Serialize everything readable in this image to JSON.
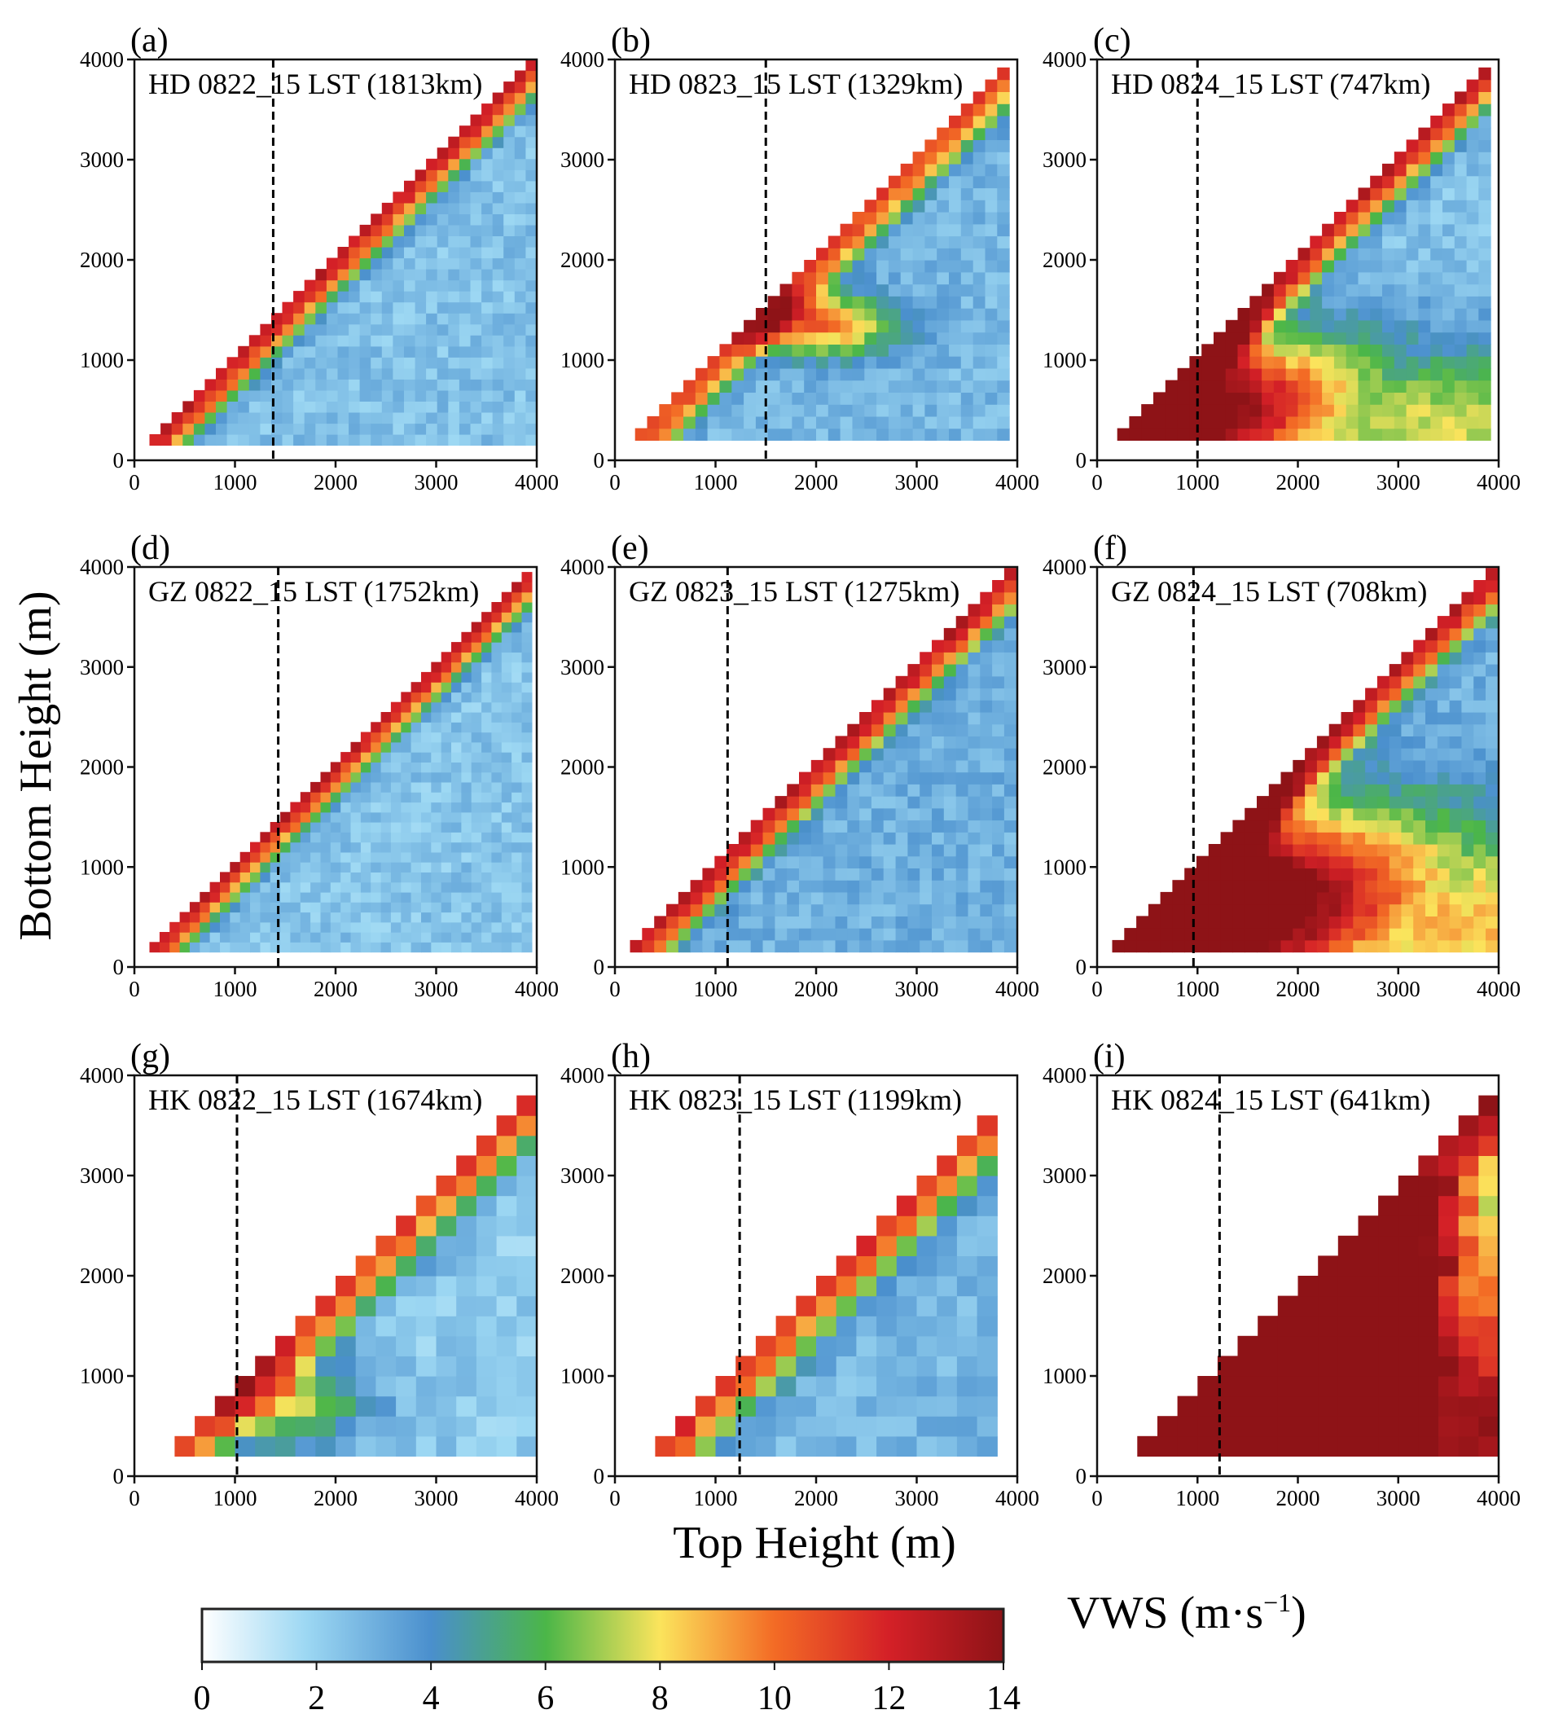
{
  "chart_data": {
    "type": "heatmap",
    "figure_title": "",
    "xlabel": "Top Height (m)",
    "ylabel": "Bottom Height (m)",
    "xlim": [
      0,
      4000
    ],
    "ylim": [
      0,
      4000
    ],
    "xticks": [
      "0",
      "1000",
      "2000",
      "3000",
      "4000"
    ],
    "yticks": [
      "0",
      "1000",
      "2000",
      "3000",
      "4000"
    ],
    "grid": false,
    "colorbar": {
      "label": "VWS (m·s⁻¹)",
      "label_main": "VWS (m·s",
      "label_sup": "−1",
      "label_close": ")",
      "range": [
        0,
        14
      ],
      "ticks": [
        "0",
        "2",
        "4",
        "6",
        "8",
        "10",
        "12",
        "14"
      ],
      "placement": "bottom",
      "colormap": [
        {
          "v": 0,
          "c": "#ffffff"
        },
        {
          "v": 1.8,
          "c": "#9dd8f3"
        },
        {
          "v": 4,
          "c": "#4a8fcd"
        },
        {
          "v": 6,
          "c": "#4bb648"
        },
        {
          "v": 8,
          "c": "#fbe45c"
        },
        {
          "v": 10,
          "c": "#f36b25"
        },
        {
          "v": 12,
          "c": "#d42027"
        },
        {
          "v": 14,
          "c": "#8e1317"
        }
      ]
    },
    "panels": [
      {
        "letter": "(a)",
        "title": "HD 0822_15 LST (1813km)",
        "site": "HD",
        "date": "0822",
        "distance_km": 1813,
        "dashed_line_x": 1380,
        "bin_m": 110,
        "start_m": 150,
        "top_max_m": 3900,
        "near_diag_max": 14,
        "plume_strength": 0,
        "plume_extent_m": 0,
        "background": 2.5,
        "pattern": "diagonal-band"
      },
      {
        "letter": "(b)",
        "title": "HD 0823_15 LST (1329km)",
        "site": "HD",
        "date": "0823",
        "distance_km": 1329,
        "dashed_line_x": 1500,
        "bin_m": 120,
        "start_m": 200,
        "top_max_m": 3900,
        "near_diag_max": 12,
        "plume_strength": 7.5,
        "plume_center_bottom_m": 1300,
        "plume_extent_m": 900,
        "background": 2.8,
        "pattern": "mid-level-jet"
      },
      {
        "letter": "(c)",
        "title": "HD 0824_15 LST (747km)",
        "site": "HD",
        "date": "0824",
        "distance_km": 747,
        "dashed_line_x": 1000,
        "bin_m": 120,
        "start_m": 200,
        "top_max_m": 3900,
        "near_diag_max": 14,
        "plume_strength": 14,
        "plume_center_bottom_m": 300,
        "plume_extent_m": 2200,
        "background": 2.5,
        "pattern": "low-level-strong"
      },
      {
        "letter": "(d)",
        "title": "GZ 0822_15 LST (1752km)",
        "site": "GZ",
        "date": "0822",
        "distance_km": 1752,
        "dashed_line_x": 1430,
        "bin_m": 100,
        "start_m": 150,
        "top_max_m": 3900,
        "near_diag_max": 14,
        "plume_strength": 0,
        "plume_extent_m": 0,
        "background": 2.4,
        "pattern": "diagonal-band"
      },
      {
        "letter": "(e)",
        "title": "GZ 0823_15 LST (1275km)",
        "site": "GZ",
        "date": "0823",
        "distance_km": 1275,
        "dashed_line_x": 1120,
        "bin_m": 120,
        "start_m": 150,
        "top_max_m": 3900,
        "near_diag_max": 14,
        "plume_strength": 0,
        "plume_extent_m": 0,
        "background": 3.0,
        "pattern": "diagonal-band"
      },
      {
        "letter": "(f)",
        "title": "GZ 0824_15 LST (708km)",
        "site": "GZ",
        "date": "0824",
        "distance_km": 708,
        "dashed_line_x": 960,
        "bin_m": 120,
        "start_m": 150,
        "top_max_m": 3900,
        "near_diag_max": 14,
        "plume_strength": 16,
        "plume_center_bottom_m": 400,
        "plume_extent_m": 2700,
        "background": 3.0,
        "pattern": "low-level-strong"
      },
      {
        "letter": "(g)",
        "title": "HK 0822_15 LST (1674km)",
        "site": "HK",
        "date": "0822",
        "distance_km": 1674,
        "dashed_line_x": 1020,
        "bin_m": 200,
        "start_m": 400,
        "top_max_m": 3800,
        "near_diag_max": 14,
        "plume_strength": 5,
        "plume_center_bottom_m": 600,
        "plume_extent_m": 1600,
        "background": 2.2,
        "pattern": "coarse-diagonal"
      },
      {
        "letter": "(h)",
        "title": "HK 0823_15 LST (1199km)",
        "site": "HK",
        "date": "0823",
        "distance_km": 1199,
        "dashed_line_x": 1240,
        "bin_m": 200,
        "start_m": 400,
        "top_max_m": 3600,
        "near_diag_max": 14,
        "plume_strength": 0,
        "plume_extent_m": 0,
        "background": 2.8,
        "pattern": "coarse-diagonal"
      },
      {
        "letter": "(i)",
        "title": "HK 0824_15 LST (641km)",
        "site": "HK",
        "date": "0824",
        "distance_km": 641,
        "dashed_line_x": 1220,
        "bin_m": 200,
        "start_m": 400,
        "top_max_m": 3800,
        "near_diag_max": 14,
        "plume_strength": 18,
        "plume_center_bottom_m": 400,
        "plume_extent_m": 3000,
        "background": 7.5,
        "pattern": "low-level-strong"
      }
    ]
  }
}
